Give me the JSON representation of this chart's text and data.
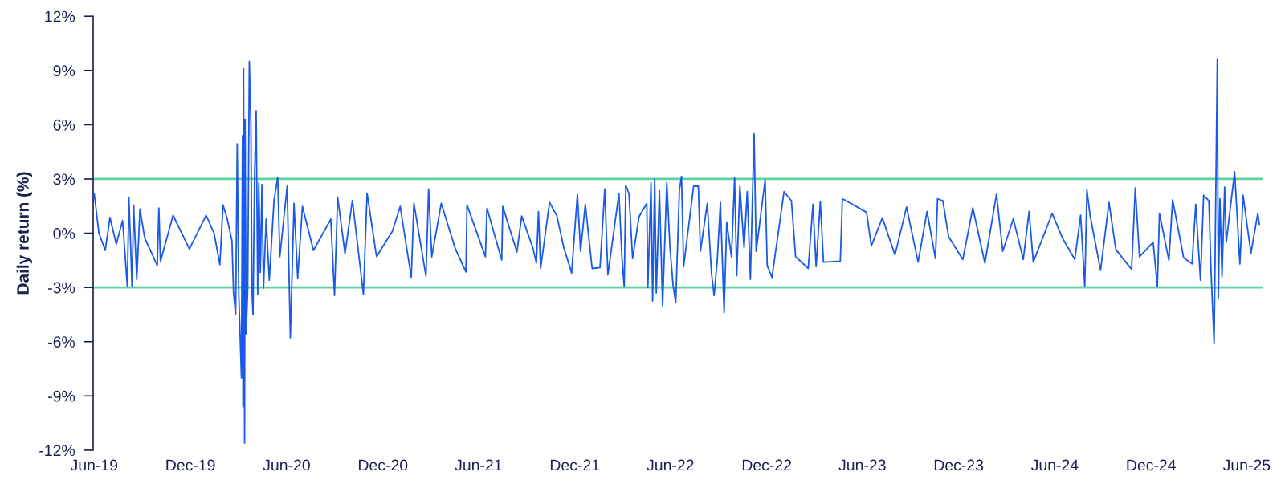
{
  "chart_data": {
    "type": "line",
    "ylabel": "Daily return (%)",
    "x": [
      "2019-06-01",
      "2019-06-10",
      "2019-06-22",
      "2019-07-01",
      "2019-07-13",
      "2019-07-25",
      "2019-08-03",
      "2019-08-06",
      "2019-08-12",
      "2019-08-15",
      "2019-08-21",
      "2019-08-27",
      "2019-09-05",
      "2019-09-29",
      "2019-10-02",
      "2019-10-05",
      "2019-10-29",
      "2019-11-29",
      "2019-12-31",
      "2020-01-15",
      "2020-01-26",
      "2020-02-01",
      "2020-02-09",
      "2020-02-18",
      "2020-02-21",
      "2020-02-25",
      "2020-02-28",
      "2020-03-02",
      "2020-03-07",
      "2020-03-09",
      "2020-03-10",
      "2020-03-11",
      "2020-03-13",
      "2020-03-14",
      "2020-03-16",
      "2020-03-19",
      "2020-03-22",
      "2020-03-25",
      "2020-03-27",
      "2020-03-29",
      "2020-04-01",
      "2020-04-04",
      "2020-04-07",
      "2020-04-09",
      "2020-04-12",
      "2020-04-15",
      "2020-04-18",
      "2020-04-23",
      "2020-04-29",
      "2020-05-08",
      "2020-05-15",
      "2020-05-19",
      "2020-06-02",
      "2020-06-08",
      "2020-06-15",
      "2020-06-22",
      "2020-07-01",
      "2020-07-22",
      "2020-08-24",
      "2020-08-31",
      "2020-09-06",
      "2020-09-20",
      "2020-10-04",
      "2020-10-25",
      "2020-11-01",
      "2020-11-19",
      "2020-12-19",
      "2021-01-03",
      "2021-01-24",
      "2021-01-29",
      "2021-02-21",
      "2021-02-26",
      "2021-03-04",
      "2021-03-22",
      "2021-04-18",
      "2021-05-08",
      "2021-05-10",
      "2021-06-14",
      "2021-06-17",
      "2021-07-15",
      "2021-07-17",
      "2021-08-13",
      "2021-08-22",
      "2021-09-12",
      "2021-09-19",
      "2021-09-23",
      "2021-09-27",
      "2021-10-14",
      "2021-10-28",
      "2021-11-10",
      "2021-11-25",
      "2021-12-06",
      "2021-12-12",
      "2021-12-21",
      "2022-01-03",
      "2022-01-18",
      "2022-01-27",
      "2022-02-02",
      "2022-02-23",
      "2022-03-01",
      "2022-03-05",
      "2022-03-08",
      "2022-03-14",
      "2022-03-21",
      "2022-04-02",
      "2022-04-17",
      "2022-04-19",
      "2022-04-25",
      "2022-04-28",
      "2022-05-02",
      "2022-05-05",
      "2022-05-11",
      "2022-05-17",
      "2022-05-25",
      "2022-05-31",
      "2022-06-06",
      "2022-06-11",
      "2022-06-18",
      "2022-06-22",
      "2022-06-26",
      "2022-07-15",
      "2022-07-24",
      "2022-07-28",
      "2022-08-10",
      "2022-08-18",
      "2022-08-23",
      "2022-08-29",
      "2022-09-04",
      "2022-09-11",
      "2022-09-16",
      "2022-09-25",
      "2022-10-01",
      "2022-10-05",
      "2022-10-11",
      "2022-10-19",
      "2022-10-25",
      "2022-10-31",
      "2022-11-07",
      "2022-11-11",
      "2022-11-28",
      "2022-12-02",
      "2022-12-11",
      "2023-01-03",
      "2023-01-17",
      "2023-01-25",
      "2023-02-18",
      "2023-02-27",
      "2023-03-05",
      "2023-03-13",
      "2023-03-19",
      "2023-04-20",
      "2023-04-24",
      "2023-05-01",
      "2023-05-28",
      "2023-06-09",
      "2023-06-18",
      "2023-07-09",
      "2023-08-02",
      "2023-08-24",
      "2023-09-15",
      "2023-10-02",
      "2023-10-18",
      "2023-10-22",
      "2023-11-01",
      "2023-11-12",
      "2023-12-09",
      "2023-12-28",
      "2024-01-20",
      "2024-02-11",
      "2024-02-23",
      "2024-03-14",
      "2024-04-02",
      "2024-04-13",
      "2024-04-21",
      "2024-05-27",
      "2024-06-16",
      "2024-07-09",
      "2024-07-20",
      "2024-07-28",
      "2024-08-01",
      "2024-08-07",
      "2024-08-27",
      "2024-09-12",
      "2024-09-25",
      "2024-10-25",
      "2024-11-01",
      "2024-11-09",
      "2024-12-05",
      "2024-12-13",
      "2024-12-17",
      "2025-01-04",
      "2025-01-11",
      "2025-02-01",
      "2025-02-17",
      "2025-02-24",
      "2025-03-05",
      "2025-03-11",
      "2025-03-21",
      "2025-03-25",
      "2025-03-31",
      "2025-04-06",
      "2025-04-08",
      "2025-04-11",
      "2025-04-15",
      "2025-04-20",
      "2025-04-23",
      "2025-05-09",
      "2025-05-19",
      "2025-05-25",
      "2025-06-09",
      "2025-06-22",
      "2025-06-25"
    ],
    "series": [
      {
        "color": "#1a5ae6",
        "values": [
          2.2,
          0,
          -0.95,
          0.87,
          -0.6,
          0.7,
          -2.95,
          1.96,
          -2.95,
          1.56,
          -2.57,
          1.34,
          -0.26,
          -1.79,
          1.39,
          -1.56,
          0.99,
          -0.87,
          0.99,
          0,
          -1.74,
          1.56,
          0.8,
          -0.43,
          -3.3,
          -4.5,
          4.95,
          -3.39,
          -8,
          5.4,
          -9.6,
          9.1,
          -11.6,
          6.3,
          -5.56,
          -3.04,
          9.5,
          6.07,
          -3.2,
          -4.5,
          3.2,
          6.77,
          -3.39,
          2.78,
          -2.17,
          2.69,
          -3.04,
          0.78,
          -2.6,
          1.82,
          3.09,
          -1.3,
          2.6,
          -5.78,
          1.65,
          -2.48,
          1.48,
          -0.95,
          0.78,
          -3.44,
          2.0,
          -1.13,
          1.82,
          -3.39,
          2.22,
          -1.3,
          0.1,
          1.48,
          -2.43,
          1.65,
          -2.38,
          2.45,
          -1.3,
          1.65,
          -0.87,
          -2.14,
          1.56,
          -1.3,
          1.39,
          -1.48,
          1.48,
          -1.04,
          0.95,
          -0.78,
          -1.65,
          1.2,
          -1.95,
          1.7,
          0.95,
          -0.78,
          -2.2,
          2.15,
          -1.0,
          1.6,
          -1.95,
          -1.9,
          2.45,
          -2.3,
          2.2,
          -1.5,
          -2.95,
          2.65,
          2.2,
          -1.4,
          0.9,
          1.65,
          -3.0,
          2.8,
          -3.75,
          3.0,
          -3.3,
          2.35,
          -4.0,
          2.8,
          -0.75,
          -2.9,
          -3.85,
          2.4,
          3.15,
          -1.85,
          2.6,
          2.6,
          -1.0,
          1.65,
          -2.2,
          -3.45,
          -1.5,
          1.7,
          -4.4,
          0.6,
          -1.3,
          3.05,
          -2.35,
          2.6,
          -0.8,
          2.3,
          -2.55,
          5.5,
          -1.0,
          2.95,
          -1.8,
          -2.45,
          2.3,
          1.8,
          -1.3,
          -1.95,
          1.6,
          -1.85,
          1.75,
          -1.6,
          -1.55,
          1.9,
          1.8,
          1.35,
          1.15,
          -0.7,
          0.85,
          -1.2,
          1.45,
          -1.6,
          1.2,
          -1.4,
          1.9,
          1.8,
          -0.2,
          -1.45,
          1.4,
          -1.65,
          2.15,
          -1.0,
          0.8,
          -1.45,
          1.2,
          -1.6,
          1.1,
          -0.3,
          -1.45,
          1.0,
          -2.95,
          2.4,
          1.0,
          -2.05,
          1.7,
          -0.9,
          -2.0,
          2.5,
          -1.3,
          -0.5,
          -2.95,
          1.1,
          -1.5,
          1.85,
          -1.35,
          -1.7,
          1.6,
          -2.6,
          2.1,
          1.8,
          -2.0,
          -6.1,
          9.65,
          -3.6,
          1.9,
          -2.4,
          2.55,
          -0.5,
          3.4,
          -1.7,
          2.1,
          -1.1,
          1.1,
          0.5
        ]
      }
    ],
    "xlim": [
      "2019-05-30",
      "2025-07-01"
    ],
    "xticks": [
      {
        "value": "2019-06-01",
        "label": "Jun-19"
      },
      {
        "value": "2019-12-01",
        "label": "Dec-19"
      },
      {
        "value": "2020-06-01",
        "label": "Jun-20"
      },
      {
        "value": "2020-12-01",
        "label": "Dec-20"
      },
      {
        "value": "2021-06-01",
        "label": "Jun-21"
      },
      {
        "value": "2021-12-01",
        "label": "Dec-21"
      },
      {
        "value": "2022-06-01",
        "label": "Jun-22"
      },
      {
        "value": "2022-12-01",
        "label": "Dec-22"
      },
      {
        "value": "2023-06-01",
        "label": "Jun-23"
      },
      {
        "value": "2023-12-01",
        "label": "Dec-23"
      },
      {
        "value": "2024-06-01",
        "label": "Jun-24"
      },
      {
        "value": "2024-12-01",
        "label": "Dec-24"
      },
      {
        "value": "2025-06-01",
        "label": "Jun-25"
      }
    ],
    "ylim": [
      -12,
      12
    ],
    "yticks": [
      {
        "value": -12,
        "label": "-12%"
      },
      {
        "value": -9,
        "label": "-9%"
      },
      {
        "value": -6,
        "label": "-6%"
      },
      {
        "value": -3,
        "label": "-3%"
      },
      {
        "value": 0,
        "label": "0%"
      },
      {
        "value": 3,
        "label": "3%"
      },
      {
        "value": 6,
        "label": "6%"
      },
      {
        "value": 9,
        "label": "9%"
      },
      {
        "value": 12,
        "label": "12%"
      }
    ],
    "ref_lines": [
      {
        "axis": "y",
        "value": 3,
        "color": "#5dd39e"
      },
      {
        "axis": "y",
        "value": -3,
        "color": "#5dd39e"
      }
    ],
    "grid": false,
    "marker": "none",
    "line_style": "solid"
  }
}
